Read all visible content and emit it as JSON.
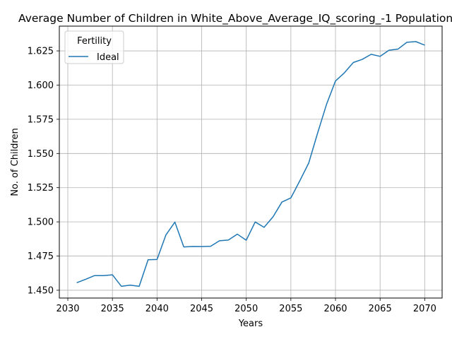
{
  "chart_data": {
    "type": "line",
    "title": "Average Number of Children in White_Above_Average_IQ_scoring_-1 Population",
    "xlabel": "Years",
    "ylabel": "No. of Children",
    "xlim": [
      2029.05,
      2071.95
    ],
    "ylim": [
      1.4443,
      1.6431
    ],
    "xticks": [
      2030,
      2035,
      2040,
      2045,
      2050,
      2055,
      2060,
      2065,
      2070
    ],
    "yticks": [
      1.45,
      1.475,
      1.5,
      1.525,
      1.55,
      1.575,
      1.6,
      1.625
    ],
    "grid": true,
    "legend": {
      "title": "Fertility",
      "placement": "top-left"
    },
    "color": "#1f77b4",
    "series": [
      {
        "name": "Ideal",
        "x": [
          2031,
          2032,
          2033,
          2034,
          2035,
          2036,
          2037,
          2038,
          2039,
          2040,
          2041,
          2042,
          2043,
          2044,
          2045,
          2046,
          2047,
          2048,
          2049,
          2050,
          2051,
          2052,
          2053,
          2054,
          2055,
          2056,
          2057,
          2058,
          2059,
          2060,
          2061,
          2062,
          2063,
          2064,
          2065,
          2066,
          2067,
          2068,
          2069,
          2070
        ],
        "y": [
          1.4555,
          1.458,
          1.4607,
          1.4607,
          1.4613,
          1.4529,
          1.4537,
          1.4529,
          1.4723,
          1.4725,
          1.4905,
          1.4998,
          1.4817,
          1.482,
          1.4819,
          1.4821,
          1.4862,
          1.4867,
          1.491,
          1.4866,
          1.4999,
          1.496,
          1.5037,
          1.5145,
          1.5175,
          1.53,
          1.543,
          1.565,
          1.586,
          1.603,
          1.609,
          1.6165,
          1.6188,
          1.6225,
          1.621,
          1.6255,
          1.6263,
          1.6313,
          1.6318,
          1.6292
        ]
      }
    ]
  }
}
